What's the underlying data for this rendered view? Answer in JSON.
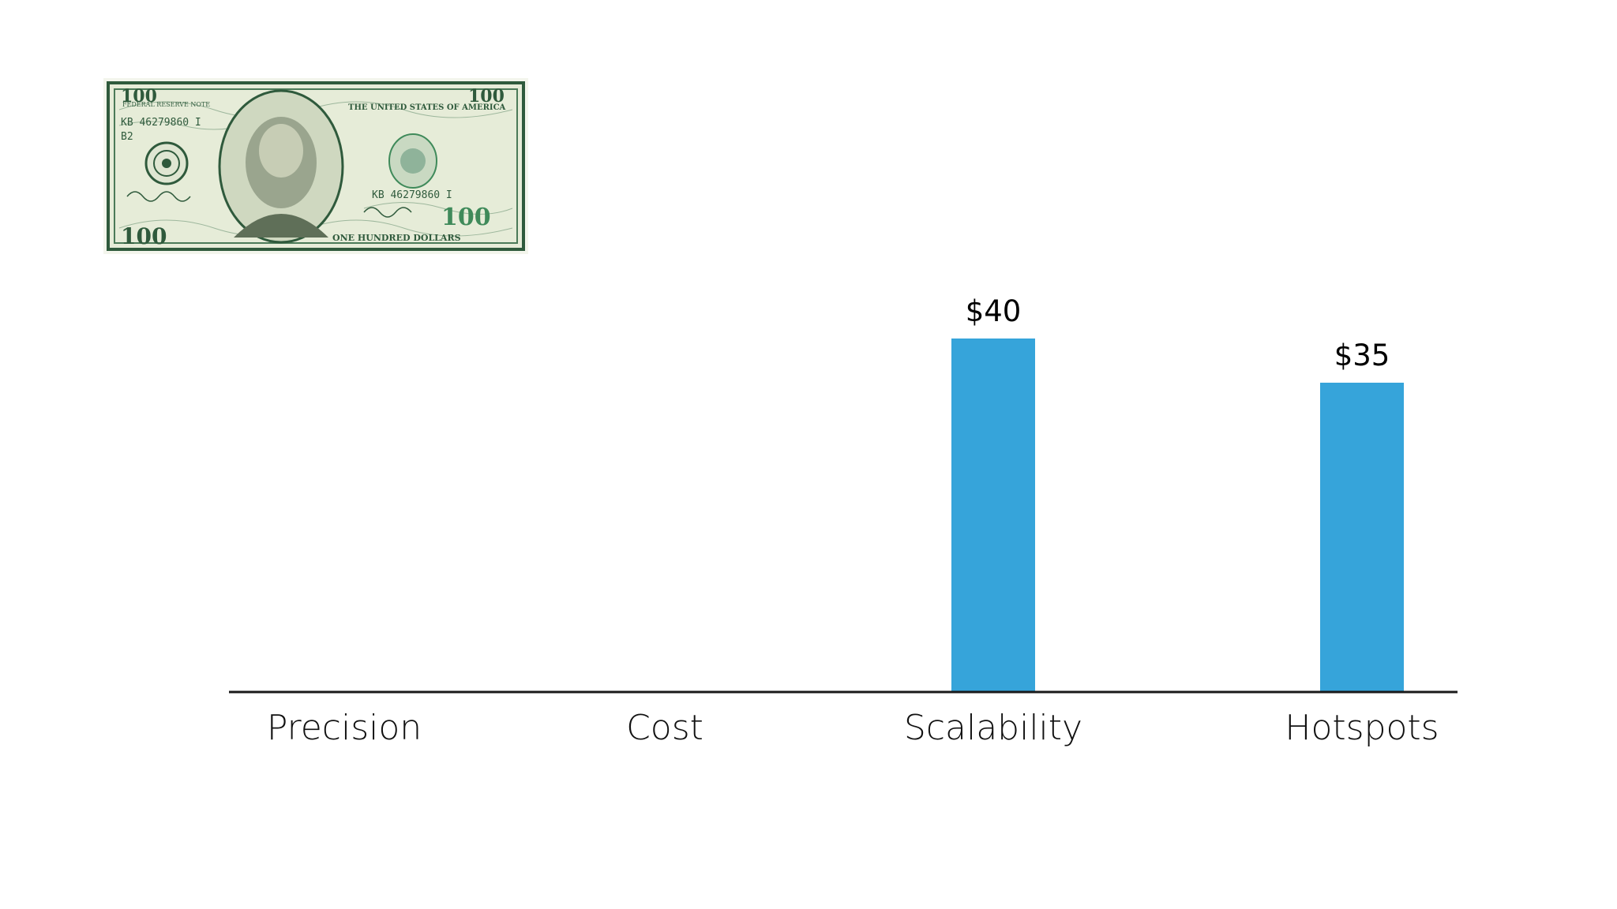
{
  "colors": {
    "bar": "#36A4DA",
    "axis": "#1a1a1a",
    "banknote_green": "#2f5a3c",
    "banknote_paper": "#e9eedd"
  },
  "banknote": {
    "icon": "hundred-dollar-bill-image",
    "denomination": "100",
    "denomination_words": "ONE HUNDRED DOLLARS",
    "issuer_top": "FEDERAL RESERVE NOTE",
    "issuer_title": "THE UNITED STATES OF AMERICA",
    "serial": "KB 46279860 I",
    "plate": "B2"
  },
  "chart_data": {
    "type": "bar",
    "categories": [
      "Precision",
      "Cost",
      "Scalability",
      "Hotspots"
    ],
    "values": [
      null,
      null,
      40,
      35
    ],
    "data_labels": [
      "",
      "",
      "$40",
      "$35"
    ],
    "title": "",
    "xlabel": "",
    "ylabel": "",
    "ylim": [
      0,
      50
    ],
    "grid": false,
    "legend": "none"
  }
}
